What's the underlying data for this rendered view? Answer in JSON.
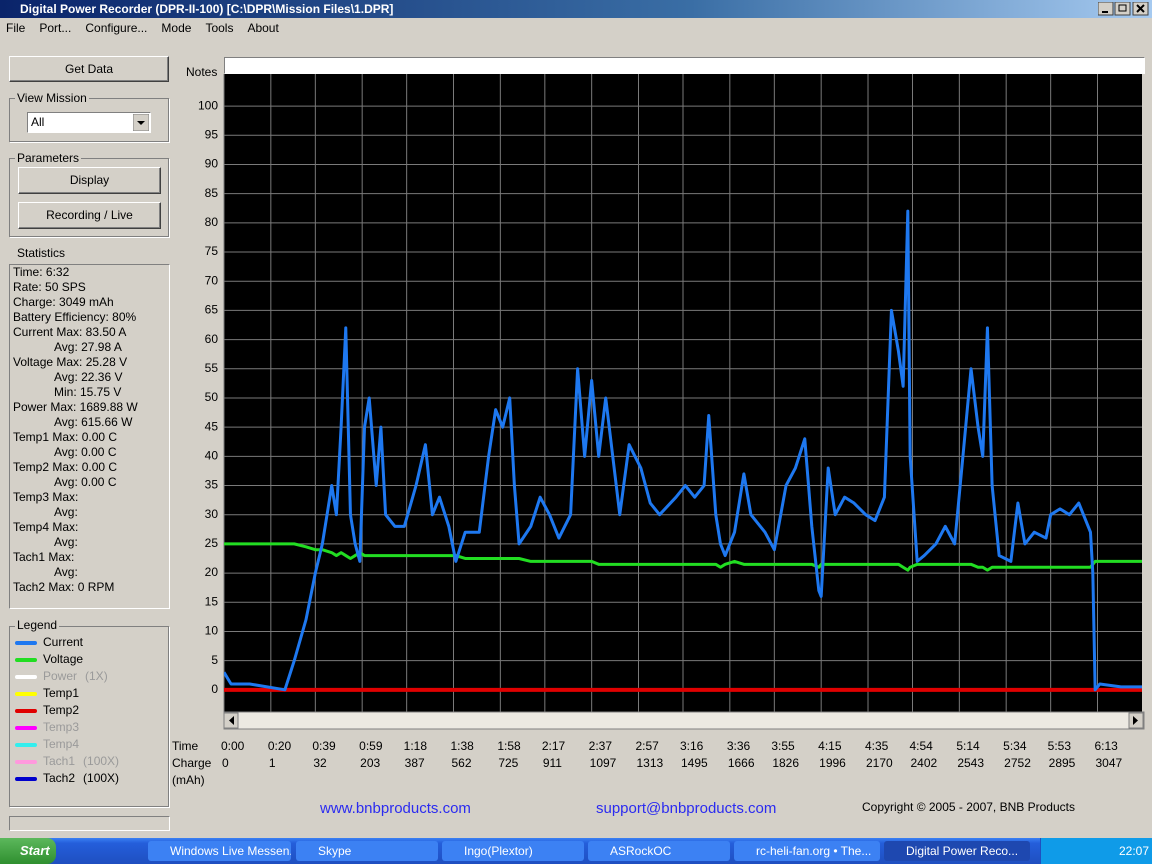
{
  "window": {
    "title": "Digital Power Recorder (DPR-II-100) [C:\\DPR\\Mission Files\\1.DPR]"
  },
  "menu": [
    "File",
    "Port...",
    "Configure...",
    "Mode",
    "Tools",
    "About"
  ],
  "sidebar": {
    "get_data": "Get Data",
    "view_mission": {
      "label": "View Mission",
      "selected": "All"
    },
    "parameters": {
      "label": "Parameters",
      "buttons": [
        "Display",
        "Recording / Live"
      ]
    },
    "statistics": {
      "label": "Statistics",
      "lines": [
        "Time: 6:32",
        "Rate: 50 SPS",
        "Charge: 3049 mAh",
        "Battery Efficiency: 80%",
        "Current Max: 83.50 A",
        "Avg: 27.98 A",
        "Voltage Max: 25.28 V",
        "Avg: 22.36 V",
        "Min: 15.75 V",
        "Power Max: 1689.88 W",
        "Avg: 615.66 W",
        "Temp1 Max: 0.00 C",
        "Avg: 0.00 C",
        "Temp2 Max: 0.00 C",
        "Avg: 0.00 C",
        "Temp3 Max:",
        "Avg:",
        "Temp4 Max:",
        "Avg:",
        "Tach1 Max:",
        "Avg:",
        "Tach2 Max: 0 RPM"
      ]
    },
    "legend_label": "Legend"
  },
  "notes_label": "Notes",
  "chart_data": {
    "type": "line",
    "grid": true,
    "xlabel": "Time",
    "x2label": "Charge",
    "x2unit": "(mAh)",
    "xlim": [
      0,
      392
    ],
    "xticks": [
      {
        "value": 0,
        "label": "0:00"
      },
      {
        "value": 20,
        "label": "0:20"
      },
      {
        "value": 39,
        "label": "0:39"
      },
      {
        "value": 59,
        "label": "0:59"
      },
      {
        "value": 78,
        "label": "1:18"
      },
      {
        "value": 98,
        "label": "1:38"
      },
      {
        "value": 118,
        "label": "1:58"
      },
      {
        "value": 137,
        "label": "2:17"
      },
      {
        "value": 157,
        "label": "2:37"
      },
      {
        "value": 177,
        "label": "2:57"
      },
      {
        "value": 196,
        "label": "3:16"
      },
      {
        "value": 216,
        "label": "3:36"
      },
      {
        "value": 235,
        "label": "3:55"
      },
      {
        "value": 255,
        "label": "4:15"
      },
      {
        "value": 275,
        "label": "4:35"
      },
      {
        "value": 294,
        "label": "4:54"
      },
      {
        "value": 314,
        "label": "5:14"
      },
      {
        "value": 334,
        "label": "5:34"
      },
      {
        "value": 353,
        "label": "5:53"
      },
      {
        "value": 373,
        "label": "6:13"
      }
    ],
    "x2ticks": [
      0,
      1,
      32,
      203,
      387,
      562,
      725,
      911,
      1097,
      1313,
      1495,
      1666,
      1826,
      1996,
      2170,
      2402,
      2543,
      2752,
      2895,
      3047
    ],
    "ylim": [
      -3.8,
      105.5
    ],
    "yticks": [
      0,
      5,
      10,
      15,
      20,
      25,
      30,
      35,
      40,
      45,
      50,
      55,
      60,
      65,
      70,
      75,
      80,
      85,
      90,
      95,
      100
    ],
    "x": [
      0,
      3,
      11,
      26,
      30,
      35,
      39,
      42,
      46,
      48,
      50,
      52,
      54,
      56,
      58,
      60,
      62,
      65,
      67,
      69,
      73,
      77,
      82,
      86,
      89,
      92,
      96,
      99,
      103,
      109,
      113,
      116,
      119,
      122,
      124,
      126,
      131,
      135,
      139,
      143,
      148,
      151,
      154,
      157,
      160,
      163,
      166,
      169,
      173,
      178,
      182,
      186,
      193,
      197,
      201,
      205,
      207,
      210,
      212,
      214,
      218,
      222,
      225,
      231,
      235,
      240,
      244,
      248,
      251,
      254,
      255,
      258,
      261,
      265,
      269,
      274,
      278,
      282,
      285,
      288,
      290,
      292,
      293,
      296,
      299,
      304,
      308,
      312,
      316,
      319,
      322,
      324,
      326,
      328,
      331,
      336,
      339,
      342,
      346,
      351,
      353,
      357,
      361,
      365,
      370,
      371,
      372,
      374,
      383,
      392
    ],
    "series": [
      {
        "name": "Current",
        "color": "#1e78f0",
        "values": [
          3,
          1,
          1,
          0,
          5,
          12,
          20,
          25,
          35,
          30,
          45,
          62,
          30,
          25,
          22,
          45,
          50,
          35,
          45,
          30,
          28,
          28,
          35,
          42,
          30,
          33,
          28,
          22,
          27,
          27,
          40,
          48,
          45,
          50,
          35,
          25,
          28,
          33,
          30,
          26,
          30,
          55,
          40,
          53,
          40,
          50,
          40,
          30,
          42,
          38,
          32,
          30,
          33,
          35,
          33,
          35,
          47,
          30,
          25,
          23,
          27,
          37,
          30,
          27,
          24,
          35,
          38,
          43,
          28,
          17,
          16,
          38,
          30,
          33,
          32,
          30,
          29,
          33,
          65,
          58,
          52,
          82,
          40,
          22,
          23,
          25,
          28,
          25,
          42,
          55,
          45,
          40,
          62,
          35,
          23,
          22,
          32,
          25,
          27,
          26,
          30,
          31,
          30,
          32,
          27,
          20,
          0,
          1,
          0.5,
          0.5
        ]
      },
      {
        "name": "Voltage",
        "color": "#22dd22",
        "values": [
          25,
          25,
          25,
          25,
          25,
          24.5,
          24,
          24,
          23.5,
          23,
          23.5,
          23,
          22.5,
          23,
          23.5,
          23,
          23,
          23,
          23,
          23,
          23,
          23,
          23,
          23,
          23,
          23,
          23,
          23,
          22.5,
          22.5,
          22.5,
          22.5,
          22.5,
          22.5,
          22.5,
          22.5,
          22,
          22,
          22,
          22,
          22,
          22,
          22,
          22,
          21.5,
          21.5,
          21.5,
          21.5,
          21.5,
          21.5,
          21.5,
          21.5,
          21.5,
          21.5,
          21.5,
          21.5,
          21.5,
          21.5,
          21,
          21.5,
          22,
          21.5,
          21.5,
          21.5,
          21.5,
          21.5,
          21.5,
          21.5,
          21.5,
          21,
          21.5,
          21.5,
          21.5,
          21.5,
          21.5,
          21.5,
          21.5,
          21.5,
          21.5,
          21.5,
          21,
          20.5,
          21,
          21.5,
          21.5,
          21.5,
          21.5,
          21.5,
          21.5,
          21.5,
          21,
          21,
          20.5,
          21,
          21,
          21,
          21,
          21,
          21,
          21,
          21,
          21,
          21,
          21,
          21,
          21.5,
          22,
          22,
          22,
          22
        ]
      },
      {
        "name": "Power",
        "scale": "(1X)",
        "dimmed": true,
        "color": "#ffffff"
      },
      {
        "name": "Temp1",
        "color": "#ffff00"
      },
      {
        "name": "Temp2",
        "color": "#e00000",
        "values": [
          0,
          0,
          0,
          0,
          0,
          0,
          0,
          0,
          0,
          0,
          0,
          0,
          0,
          0,
          0,
          0,
          0,
          0,
          0,
          0,
          0,
          0,
          0,
          0,
          0,
          0,
          0,
          0,
          0,
          0,
          0,
          0,
          0,
          0,
          0,
          0,
          0,
          0,
          0,
          0,
          0,
          0,
          0,
          0,
          0,
          0,
          0,
          0,
          0,
          0,
          0,
          0,
          0,
          0,
          0,
          0,
          0,
          0,
          0,
          0,
          0,
          0,
          0,
          0,
          0,
          0,
          0,
          0,
          0,
          0,
          0,
          0,
          0,
          0,
          0,
          0,
          0,
          0,
          0,
          0,
          0,
          0,
          0,
          0,
          0,
          0,
          0,
          0,
          0,
          0,
          0,
          0,
          0,
          0,
          0,
          0,
          0,
          0,
          0,
          0,
          0,
          0,
          0,
          0,
          0,
          0,
          0,
          0,
          0,
          0
        ]
      },
      {
        "name": "Temp3",
        "dimmed": true,
        "color": "#ff00ff"
      },
      {
        "name": "Temp4",
        "dimmed": true,
        "color": "#33eeee"
      },
      {
        "name": "Tach1",
        "scale": "(100X)",
        "dimmed": true,
        "color": "#ff99dd"
      },
      {
        "name": "Tach2",
        "scale": "(100X)",
        "color": "#0000cc"
      }
    ]
  },
  "footer": {
    "website": "www.bnbproducts.com",
    "email": "support@bnbproducts.com",
    "copyright": "Copyright © 2005 - 2007, BNB Products"
  },
  "taskbar": {
    "start": "Start",
    "tasks": [
      "Windows Live Messen...",
      "Skype",
      "Ingo(Plextor)",
      "ASRockOC",
      "rc-heli-fan.org • The...",
      "Digital Power Reco..."
    ],
    "active": 5,
    "clock": "22:07"
  }
}
